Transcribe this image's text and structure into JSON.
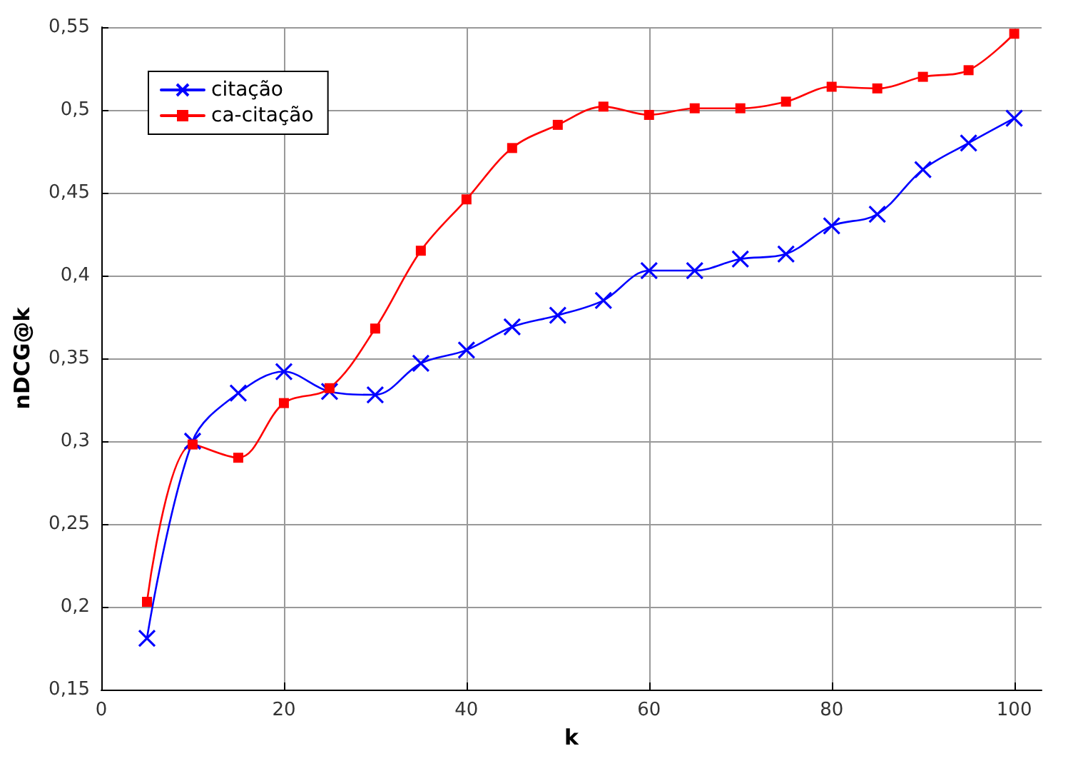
{
  "chart_data": {
    "type": "line",
    "xlabel": "k",
    "ylabel": "nDCG@k",
    "x": [
      5,
      10,
      15,
      20,
      25,
      30,
      35,
      40,
      45,
      50,
      55,
      60,
      65,
      70,
      75,
      80,
      85,
      90,
      95,
      100
    ],
    "series": [
      {
        "name": "citação",
        "color": "#0000ff",
        "marker": "cross",
        "values": [
          0.181,
          0.3,
          0.329,
          0.342,
          0.33,
          0.328,
          0.347,
          0.355,
          0.369,
          0.376,
          0.385,
          0.403,
          0.403,
          0.41,
          0.413,
          0.43,
          0.437,
          0.464,
          0.48,
          0.495
        ]
      },
      {
        "name": "ca-citação",
        "color": "#ff0000",
        "marker": "square",
        "values": [
          0.203,
          0.298,
          0.29,
          0.323,
          0.332,
          0.368,
          0.415,
          0.446,
          0.477,
          0.491,
          0.502,
          0.497,
          0.501,
          0.501,
          0.505,
          0.514,
          0.513,
          0.52,
          0.524,
          0.546
        ]
      }
    ],
    "xlim": [
      0,
      103
    ],
    "xticks": [
      0,
      20,
      40,
      60,
      80,
      100
    ],
    "ylim": [
      0.15,
      0.55
    ],
    "yticks": [
      {
        "value": 0.15,
        "label": "0,15"
      },
      {
        "value": 0.2,
        "label": "0,2"
      },
      {
        "value": 0.25,
        "label": "0,25"
      },
      {
        "value": 0.3,
        "label": "0,3"
      },
      {
        "value": 0.35,
        "label": "0,35"
      },
      {
        "value": 0.4,
        "label": "0,4"
      },
      {
        "value": 0.45,
        "label": "0,45"
      },
      {
        "value": 0.5,
        "label": "0,5"
      },
      {
        "value": 0.55,
        "label": "0,55"
      }
    ],
    "grid": true,
    "legend": "top left",
    "line_style": "solid"
  }
}
